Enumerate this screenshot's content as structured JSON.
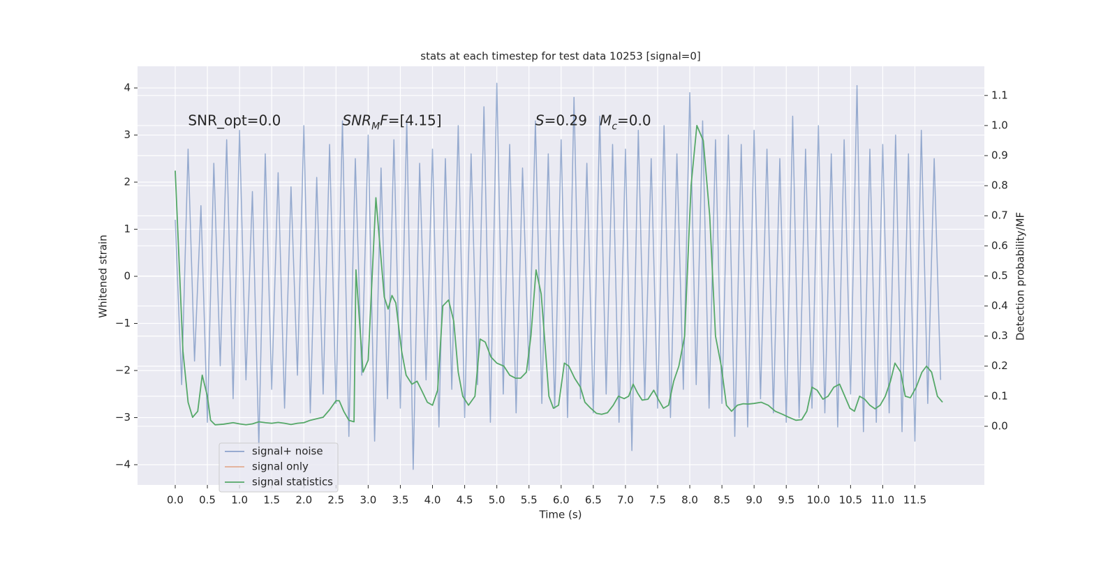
{
  "chart_data": {
    "type": "line",
    "title": "stats at each timestep for test data 10253 [signal=0]",
    "x_label": "Time (s)",
    "y_label": "Whitened strain",
    "y2_label": "Detection probability/MF",
    "xlim": [
      -0.586,
      12.58
    ],
    "ylim": [
      -4.43,
      4.46
    ],
    "y2lim": [
      -0.195,
      1.197
    ],
    "grid": true,
    "legend_loc": "lower left",
    "xticks": [
      {
        "value": 0,
        "label": "0.0"
      },
      {
        "value": 0.5,
        "label": "0.5"
      },
      {
        "value": 1,
        "label": "1.0"
      },
      {
        "value": 1.5,
        "label": "1.5"
      },
      {
        "value": 2,
        "label": "2.0"
      },
      {
        "value": 2.5,
        "label": "2.5"
      },
      {
        "value": 3,
        "label": "3.0"
      },
      {
        "value": 3.5,
        "label": "3.5"
      },
      {
        "value": 4,
        "label": "4.0"
      },
      {
        "value": 4.5,
        "label": "4.5"
      },
      {
        "value": 5,
        "label": "5.0"
      },
      {
        "value": 5.5,
        "label": "5.5"
      },
      {
        "value": 6,
        "label": "6.0"
      },
      {
        "value": 6.5,
        "label": "6.5"
      },
      {
        "value": 7,
        "label": "7.0"
      },
      {
        "value": 7.5,
        "label": "7.5"
      },
      {
        "value": 8,
        "label": "8.0"
      },
      {
        "value": 8.5,
        "label": "8.5"
      },
      {
        "value": 9,
        "label": "9.0"
      },
      {
        "value": 9.5,
        "label": "9.5"
      },
      {
        "value": 10,
        "label": "10.0"
      },
      {
        "value": 10.5,
        "label": "10.5"
      },
      {
        "value": 11,
        "label": "11.0"
      },
      {
        "value": 11.5,
        "label": "11.5"
      }
    ],
    "yticks": [
      {
        "value": -4,
        "label": "−4"
      },
      {
        "value": -3,
        "label": "−3"
      },
      {
        "value": -2,
        "label": "−2"
      },
      {
        "value": -1,
        "label": "−1"
      },
      0,
      1,
      2,
      3,
      4
    ],
    "y2ticks": [
      {
        "value": 0,
        "label": "0.0"
      },
      {
        "value": 0.1,
        "label": "0.1"
      },
      {
        "value": 0.2,
        "label": "0.2"
      },
      {
        "value": 0.3,
        "label": "0.3"
      },
      {
        "value": 0.4,
        "label": "0.4"
      },
      {
        "value": 0.5,
        "label": "0.5"
      },
      {
        "value": 0.6,
        "label": "0.6"
      },
      {
        "value": 0.7,
        "label": "0.7"
      },
      {
        "value": 0.8,
        "label": "0.8"
      },
      {
        "value": 0.9,
        "label": "0.9"
      },
      {
        "value": 1,
        "label": "1.0"
      },
      {
        "value": 1.1,
        "label": "1.1"
      }
    ],
    "annotations": [
      {
        "x": 0.2,
        "y": 3.3,
        "parts": [
          {
            "text": "SNR_opt=0.0",
            "style": "normal"
          }
        ]
      },
      {
        "x": 2.6,
        "y": 3.3,
        "parts": [
          {
            "text": "SNR",
            "style": "italic"
          },
          {
            "text": "M",
            "style": "sub"
          },
          {
            "text": "F",
            "style": "italic"
          },
          {
            "text": "=[4.15]",
            "style": "normal"
          }
        ]
      },
      {
        "x": 5.6,
        "y": 3.3,
        "parts": [
          {
            "text": "S",
            "style": "italic"
          },
          {
            "text": "=0.29",
            "style": "normal"
          }
        ]
      },
      {
        "x": 6.6,
        "y": 3.3,
        "parts": [
          {
            "text": "M",
            "style": "italic"
          },
          {
            "text": "c",
            "style": "sub"
          },
          {
            "text": "=0.0",
            "style": "normal"
          }
        ]
      }
    ],
    "series": [
      {
        "name": "signal+ noise",
        "color": "#4c72b0",
        "axis": "y",
        "x": [
          0,
          0.1,
          0.2,
          0.3,
          0.4,
          0.5,
          0.6,
          0.7,
          0.8,
          0.9,
          1,
          1.1,
          1.2,
          1.3,
          1.4,
          1.5,
          1.6,
          1.7,
          1.8,
          1.9,
          2,
          2.1,
          2.2,
          2.3,
          2.4,
          2.5,
          2.6,
          2.7,
          2.8,
          2.9,
          3,
          3.1,
          3.2,
          3.3,
          3.4,
          3.5,
          3.6,
          3.7,
          3.8,
          3.9,
          4,
          4.1,
          4.2,
          4.3,
          4.4,
          4.5,
          4.6,
          4.7,
          4.8,
          4.9,
          5,
          5.1,
          5.2,
          5.3,
          5.4,
          5.5,
          5.6,
          5.7,
          5.8,
          5.9,
          6,
          6.1,
          6.2,
          6.3,
          6.4,
          6.5,
          6.6,
          6.7,
          6.8,
          6.9,
          7,
          7.1,
          7.2,
          7.3,
          7.4,
          7.5,
          7.6,
          7.7,
          7.8,
          7.9,
          8,
          8.1,
          8.2,
          8.3,
          8.4,
          8.5,
          8.6,
          8.7,
          8.8,
          8.9,
          9,
          9.1,
          9.2,
          9.3,
          9.4,
          9.5,
          9.6,
          9.7,
          9.8,
          9.9,
          10,
          10.1,
          10.2,
          10.3,
          10.4,
          10.5,
          10.6,
          10.7,
          10.8,
          10.9,
          11,
          11.1,
          11.2,
          11.3,
          11.4,
          11.5,
          11.6,
          11.7,
          11.8,
          11.9
        ],
        "values": [
          1.2,
          -2.3,
          2.7,
          -1.8,
          1.5,
          -3.1,
          2.4,
          -1.9,
          2.9,
          -2.6,
          3.1,
          -2.2,
          1.8,
          -3.6,
          2.6,
          -2.4,
          2.2,
          -2.8,
          1.9,
          -2.1,
          3.2,
          -2.9,
          2.1,
          -2.5,
          2.8,
          -2.7,
          3.3,
          -3.4,
          2.5,
          -2.1,
          3.0,
          -3.5,
          2.3,
          -2.6,
          2.9,
          -2.8,
          3.3,
          -4.1,
          2.4,
          -2.2,
          2.7,
          -3.2,
          2.5,
          -2.4,
          3.2,
          -3.0,
          2.6,
          -2.3,
          3.6,
          -3.1,
          4.1,
          -2.5,
          2.8,
          -2.9,
          2.3,
          -2.0,
          3.3,
          -2.7,
          2.6,
          -2.8,
          2.9,
          -3.0,
          3.8,
          -2.6,
          2.4,
          -2.9,
          3.4,
          -2.5,
          2.8,
          -3.1,
          2.7,
          -3.7,
          3.1,
          -2.6,
          2.5,
          -2.8,
          3.2,
          -3.0,
          2.6,
          -2.4,
          3.9,
          -2.3,
          3.3,
          -2.8,
          2.9,
          -2.7,
          3.0,
          -3.4,
          2.8,
          -3.2,
          3.1,
          -2.6,
          2.7,
          -2.9,
          2.5,
          -3.1,
          3.4,
          -3.0,
          2.7,
          -2.8,
          3.2,
          -2.9,
          2.6,
          -3.2,
          2.9,
          -2.5,
          4.05,
          -3.3,
          2.7,
          -3.1,
          2.8,
          -2.9,
          3.0,
          -3.3,
          2.6,
          -3.5,
          3.1,
          -2.7,
          2.5,
          -2.2
        ]
      },
      {
        "name": "signal only",
        "color": "#dd8452",
        "axis": "y",
        "x": [],
        "values": []
      },
      {
        "name": "signal statistics",
        "color": "#55a868",
        "axis": "y2",
        "x": [
          0,
          0.05,
          0.12,
          0.2,
          0.27,
          0.35,
          0.42,
          0.5,
          0.55,
          0.62,
          0.75,
          0.9,
          1,
          1.1,
          1.2,
          1.3,
          1.4,
          1.5,
          1.6,
          1.7,
          1.8,
          1.9,
          2,
          2.1,
          2.2,
          2.3,
          2.4,
          2.5,
          2.55,
          2.62,
          2.7,
          2.78,
          2.81,
          2.92,
          3,
          3.12,
          3.25,
          3.31,
          3.37,
          3.43,
          3.52,
          3.59,
          3.68,
          3.76,
          3.83,
          3.92,
          4,
          4.08,
          4.16,
          4.25,
          4.33,
          4.4,
          4.47,
          4.56,
          4.66,
          4.74,
          4.82,
          4.91,
          5,
          5.11,
          5.2,
          5.29,
          5.37,
          5.46,
          5.53,
          5.61,
          5.69,
          5.74,
          5.81,
          5.88,
          5.96,
          6.05,
          6.12,
          6.21,
          6.3,
          6.37,
          6.46,
          6.55,
          6.63,
          6.72,
          6.81,
          6.89,
          6.98,
          7.05,
          7.12,
          7.19,
          7.26,
          7.35,
          7.44,
          7.51,
          7.59,
          7.67,
          7.75,
          7.83,
          7.92,
          8.02,
          8.11,
          8.21,
          8.31,
          8.4,
          8.49,
          8.57,
          8.65,
          8.74,
          8.83,
          8.91,
          9,
          9.11,
          9.22,
          9.33,
          9.44,
          9.54,
          9.65,
          9.74,
          9.82,
          9.9,
          9.98,
          10.07,
          10.15,
          10.24,
          10.33,
          10.41,
          10.49,
          10.56,
          10.64,
          10.72,
          10.8,
          10.88,
          10.96,
          11.04,
          11.12,
          11.19,
          11.28,
          11.35,
          11.43,
          11.52,
          11.61,
          11.68,
          11.76,
          11.85,
          11.93
        ],
        "values": [
          0.85,
          0.6,
          0.25,
          0.08,
          0.03,
          0.05,
          0.17,
          0.1,
          0.02,
          0.005,
          0.007,
          0.012,
          0.008,
          0.005,
          0.008,
          0.015,
          0.012,
          0.01,
          0.013,
          0.01,
          0.006,
          0.01,
          0.012,
          0.02,
          0.025,
          0.03,
          0.055,
          0.085,
          0.085,
          0.05,
          0.02,
          0.015,
          0.52,
          0.18,
          0.22,
          0.76,
          0.43,
          0.39,
          0.435,
          0.41,
          0.25,
          0.17,
          0.14,
          0.15,
          0.12,
          0.08,
          0.07,
          0.12,
          0.4,
          0.42,
          0.35,
          0.18,
          0.1,
          0.07,
          0.1,
          0.29,
          0.28,
          0.23,
          0.21,
          0.2,
          0.17,
          0.16,
          0.16,
          0.18,
          0.3,
          0.52,
          0.44,
          0.3,
          0.1,
          0.06,
          0.07,
          0.21,
          0.2,
          0.16,
          0.13,
          0.08,
          0.06,
          0.043,
          0.04,
          0.045,
          0.07,
          0.1,
          0.092,
          0.1,
          0.14,
          0.11,
          0.087,
          0.09,
          0.12,
          0.09,
          0.06,
          0.07,
          0.15,
          0.2,
          0.3,
          0.8,
          1.0,
          0.95,
          0.7,
          0.3,
          0.2,
          0.07,
          0.05,
          0.07,
          0.075,
          0.074,
          0.076,
          0.08,
          0.07,
          0.05,
          0.04,
          0.03,
          0.02,
          0.022,
          0.05,
          0.13,
          0.12,
          0.09,
          0.1,
          0.13,
          0.14,
          0.1,
          0.06,
          0.05,
          0.1,
          0.09,
          0.07,
          0.058,
          0.07,
          0.1,
          0.15,
          0.21,
          0.18,
          0.1,
          0.095,
          0.13,
          0.18,
          0.2,
          0.18,
          0.1,
          0.08
        ]
      }
    ]
  }
}
